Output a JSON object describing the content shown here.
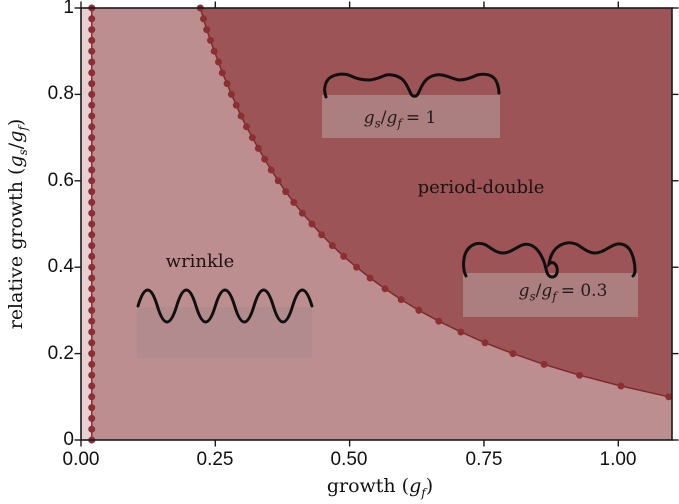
{
  "figure": {
    "x_label": {
      "pre": "growth (",
      "g": "g",
      "sub": "f",
      "post": ")"
    },
    "y_label": {
      "pre": "relative growth (",
      "g1": "g",
      "sub1": "s",
      "slash": "/",
      "g2": "g",
      "sub2": "f",
      "post": ")"
    },
    "annotations": {
      "wrinkle": "wrinkle",
      "period_double": "period-double",
      "inset_gs1": {
        "g1": "g",
        "s1": "s",
        "slash": "/",
        "g2": "g",
        "s2": "f",
        "eq": "= 1"
      },
      "inset_gs03": {
        "g1": "g",
        "s1": "s",
        "slash": "/",
        "g2": "g",
        "s2": "f",
        "eq": "= 0.3"
      }
    }
  },
  "chart_data": {
    "type": "area",
    "title": "",
    "xlabel": "growth (g_f)",
    "ylabel": "relative growth (g_s/g_f)",
    "xlim": [
      0,
      1.1
    ],
    "ylim": [
      0,
      1
    ],
    "grid": false,
    "x_ticks": [
      0,
      0.25,
      0.5,
      0.75,
      1.0
    ],
    "x_tick_labels": [
      "0.00",
      "0.25",
      "0.50",
      "0.75",
      "1.00"
    ],
    "y_ticks": [
      0,
      0.2,
      0.4,
      0.6,
      0.8,
      1.0
    ],
    "y_tick_labels": [
      "0",
      "0.2",
      "0.4",
      "0.6",
      "0.8",
      "1"
    ],
    "colors": {
      "flat_region": "#e8d0d2",
      "wrinkle_region": "#bd8e90",
      "period_double_region": "#9c5456",
      "boundary_line": "#7d2a2e",
      "boundary_marker": "#8c2f33",
      "spine": "#1a1a1a",
      "inset_box_wrinkle": "#b18b8d",
      "inset_box_pd": "#ab7f80",
      "profile_stroke": "#101010"
    },
    "regions": [
      {
        "name": "flat",
        "label": "",
        "x_range": [
          0,
          0.02
        ],
        "color": "#e8d0d2"
      },
      {
        "name": "wrinkle",
        "label": "wrinkle",
        "color": "#bd8e90"
      },
      {
        "name": "period-double",
        "label": "period-double",
        "color": "#9c5456"
      }
    ],
    "flat_wrinkle_boundary": {
      "x": 0.02,
      "y_range": [
        0,
        1
      ],
      "marker_count": 41
    },
    "wrinkle_pd_boundary": {
      "points": [
        [
          0.222,
          1.0
        ],
        [
          0.228,
          0.975
        ],
        [
          0.234,
          0.95
        ],
        [
          0.241,
          0.925
        ],
        [
          0.248,
          0.9
        ],
        [
          0.256,
          0.875
        ],
        [
          0.263,
          0.85
        ],
        [
          0.272,
          0.825
        ],
        [
          0.28,
          0.8
        ],
        [
          0.289,
          0.775
        ],
        [
          0.298,
          0.75
        ],
        [
          0.308,
          0.725
        ],
        [
          0.319,
          0.7
        ],
        [
          0.33,
          0.675
        ],
        [
          0.342,
          0.65
        ],
        [
          0.354,
          0.625
        ],
        [
          0.367,
          0.6
        ],
        [
          0.381,
          0.575
        ],
        [
          0.396,
          0.55
        ],
        [
          0.412,
          0.525
        ],
        [
          0.43,
          0.5
        ],
        [
          0.448,
          0.475
        ],
        [
          0.468,
          0.45
        ],
        [
          0.489,
          0.425
        ],
        [
          0.513,
          0.4
        ],
        [
          0.538,
          0.375
        ],
        [
          0.566,
          0.35
        ],
        [
          0.596,
          0.325
        ],
        [
          0.629,
          0.3
        ],
        [
          0.666,
          0.275
        ],
        [
          0.707,
          0.25
        ],
        [
          0.752,
          0.225
        ],
        [
          0.804,
          0.2
        ],
        [
          0.862,
          0.175
        ],
        [
          0.928,
          0.15
        ],
        [
          1.005,
          0.125
        ],
        [
          1.094,
          0.1
        ]
      ]
    },
    "insets": [
      {
        "name": "wrinkle-profile",
        "label": "",
        "shape": "sine"
      },
      {
        "name": "period-double-profile-gs1",
        "label": "gs/gf = 1",
        "shape": "period-double-mild"
      },
      {
        "name": "period-double-profile-gs03",
        "label": "gs/gf = 0.3",
        "shape": "period-double-folded"
      }
    ]
  }
}
